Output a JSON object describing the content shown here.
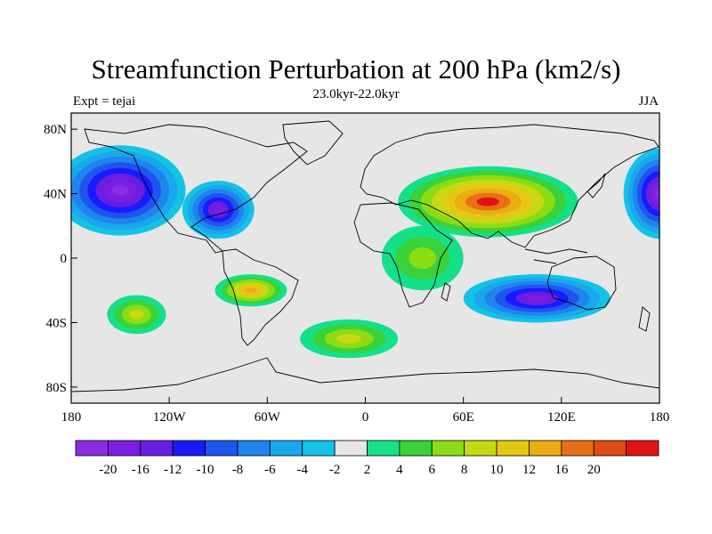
{
  "title": "Streamfunction Perturbation at 200 hPa (km2/s)",
  "subtitle": "23.0kyr-22.0kyr",
  "left_label": "Expt = tejai",
  "right_label": "JJA",
  "map": {
    "projection": "cylindrical equidistant",
    "lon_range": [
      -180,
      180
    ],
    "lat_range": [
      -90,
      90
    ],
    "x_ticks": [
      {
        "lon": -180,
        "label": "180"
      },
      {
        "lon": -120,
        "label": "120W"
      },
      {
        "lon": -60,
        "label": "60W"
      },
      {
        "lon": 0,
        "label": "0"
      },
      {
        "lon": 60,
        "label": "60E"
      },
      {
        "lon": 120,
        "label": "120E"
      },
      {
        "lon": 180,
        "label": "180"
      }
    ],
    "y_ticks": [
      {
        "lat": 80,
        "label": "80N"
      },
      {
        "lat": 40,
        "label": "40N"
      },
      {
        "lat": 0,
        "label": "0"
      },
      {
        "lat": -40,
        "label": "40S"
      },
      {
        "lat": -80,
        "label": "80S"
      }
    ],
    "features": [
      {
        "name": "asia-high",
        "lon": 75,
        "lat": 35,
        "value": 22,
        "rlon": 55,
        "rlat": 22
      },
      {
        "name": "north-pacific-low",
        "lon": -150,
        "lat": 42,
        "value": -21,
        "rlon": 40,
        "rlat": 28
      },
      {
        "name": "dateline-low",
        "lon": 180,
        "lat": 40,
        "value": -20,
        "rlon": 22,
        "rlat": 28
      },
      {
        "name": "north-america-low",
        "lon": -90,
        "lat": 30,
        "value": -17,
        "rlon": 22,
        "rlat": 18
      },
      {
        "name": "south-america-high",
        "lon": -70,
        "lat": -20,
        "value": 15,
        "rlon": 22,
        "rlat": 10
      },
      {
        "name": "australia-low",
        "lon": 105,
        "lat": -25,
        "value": -18,
        "rlon": 45,
        "rlat": 15
      },
      {
        "name": "south-pacific-high",
        "lon": -140,
        "lat": -35,
        "value": 9,
        "rlon": 18,
        "rlat": 12
      },
      {
        "name": "south-atlantic-high",
        "lon": -10,
        "lat": -50,
        "value": 9,
        "rlon": 30,
        "rlat": 12
      },
      {
        "name": "africa-high",
        "lon": 35,
        "lat": 0,
        "value": 7,
        "rlon": 25,
        "rlat": 20
      }
    ]
  },
  "colorbar": {
    "colors": [
      "#8a2be2",
      "#7a1fe0",
      "#6a1ee0",
      "#1a1aff",
      "#1e55ee",
      "#1e84ee",
      "#19a8ec",
      "#14c2e8",
      "#e6e6e6",
      "#14e08a",
      "#3ad23a",
      "#8cdc14",
      "#c8d814",
      "#e4c814",
      "#ecac14",
      "#e87014",
      "#e04a14",
      "#e01414"
    ],
    "labels": [
      "-20",
      "-16",
      "-12",
      "-10",
      "-8",
      "-6",
      "-4",
      "-2",
      "2",
      "4",
      "6",
      "8",
      "10",
      "12",
      "16",
      "20"
    ]
  }
}
